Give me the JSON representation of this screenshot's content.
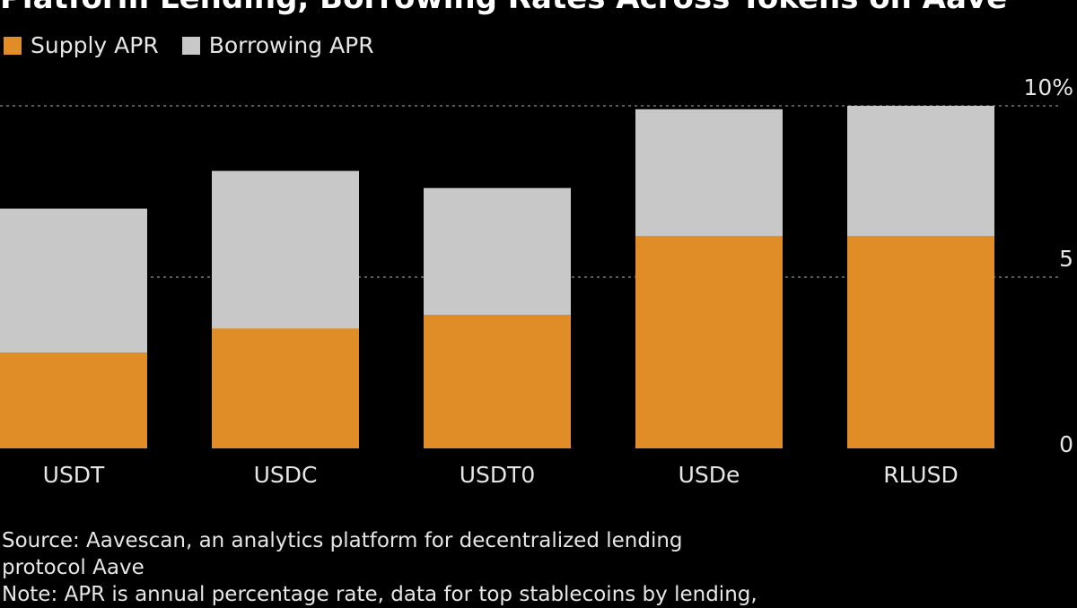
{
  "chart_data": {
    "type": "bar",
    "title": "Platform Lending, Borrowing Rates Across Tokens on Aave",
    "categories": [
      "USDT",
      "USDC",
      "USDT0",
      "USDe",
      "RLUSD"
    ],
    "series": [
      {
        "name": "Borrowing APR",
        "color": "#c8c8c8",
        "values": [
          7.0,
          8.1,
          7.6,
          9.9,
          10.0
        ]
      },
      {
        "name": "Supply APR",
        "color": "#e08c27",
        "values": [
          2.8,
          3.5,
          3.9,
          6.2,
          6.2
        ]
      }
    ],
    "legend_order": [
      "Supply APR",
      "Borrowing APR"
    ],
    "ylim": [
      0,
      10
    ],
    "yticks": [
      0,
      5,
      10
    ],
    "ytick_labels": [
      "0",
      "5",
      "10%"
    ],
    "ylabel": "",
    "xlabel": "",
    "grid": true,
    "legend_position": "top-left",
    "axis_position": "right"
  },
  "notes": {
    "source_line1": "Source: Aavescan, an analytics platform for decentralized lending",
    "source_line2": "protocol Aave",
    "note": "Note: APR is annual percentage rate, data for top stablecoins by lending,"
  }
}
